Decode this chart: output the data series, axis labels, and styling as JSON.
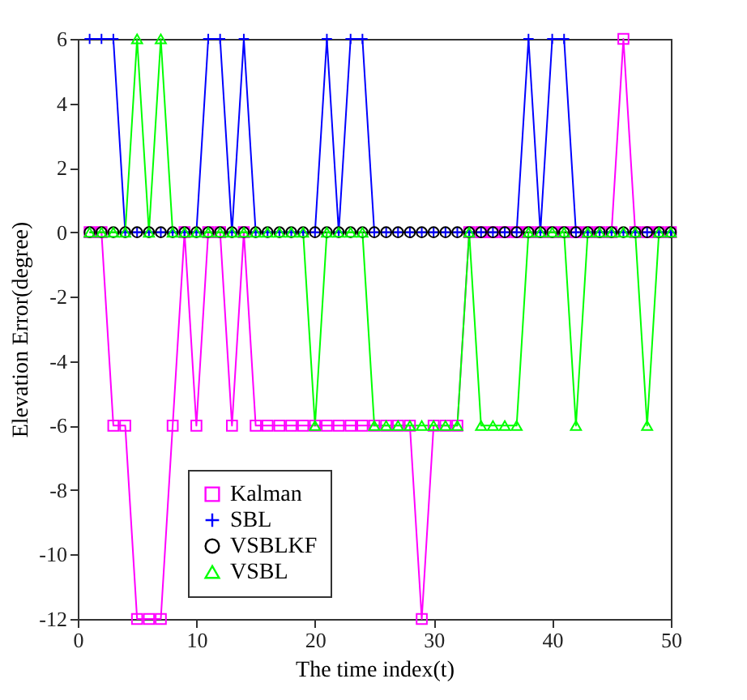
{
  "chart_data": {
    "type": "line",
    "xlabel": "The time index(t)",
    "ylabel": "Elevation Error(degree)",
    "x": [
      1,
      2,
      3,
      4,
      5,
      6,
      7,
      8,
      9,
      10,
      11,
      12,
      13,
      14,
      15,
      16,
      17,
      18,
      19,
      20,
      21,
      22,
      23,
      24,
      25,
      26,
      27,
      28,
      29,
      30,
      31,
      32,
      33,
      34,
      35,
      36,
      37,
      38,
      39,
      40,
      41,
      42,
      43,
      44,
      45,
      46,
      47,
      48,
      49,
      50
    ],
    "xlim": [
      0,
      50
    ],
    "xticks": [
      0,
      10,
      20,
      30,
      40,
      50
    ],
    "ylim": [
      -12,
      6
    ],
    "yticks": [
      -12,
      -10,
      -8,
      -6,
      -4,
      -2,
      0,
      2,
      4,
      6
    ],
    "grid": false,
    "legend": "bottom left",
    "line_style": "solid",
    "series": [
      {
        "name": "Kalman",
        "color": "#ff00ff",
        "marker": "square",
        "values": [
          0,
          0,
          -6,
          -6,
          -12,
          -12,
          -12,
          -6,
          0,
          -6,
          0,
          0,
          -6,
          0,
          -6,
          -6,
          -6,
          -6,
          -6,
          -6,
          -6,
          -6,
          -6,
          -6,
          -6,
          -6,
          -6,
          -6,
          -12,
          -6,
          -6,
          -6,
          0,
          0,
          0,
          0,
          0,
          0,
          0,
          0,
          0,
          0,
          0,
          0,
          0,
          6,
          0,
          0,
          0,
          0
        ]
      },
      {
        "name": "SBL",
        "color": "#0000ff",
        "marker": "cross",
        "values": [
          6,
          6,
          6,
          0,
          0,
          0,
          0,
          0,
          0,
          0,
          6,
          6,
          0,
          6,
          0,
          0,
          0,
          0,
          0,
          0,
          6,
          0,
          6,
          6,
          0,
          0,
          0,
          0,
          0,
          0,
          0,
          0,
          0,
          0,
          0,
          0,
          0,
          6,
          0,
          6,
          6,
          0,
          0,
          0,
          0,
          0,
          0,
          0,
          0,
          0
        ]
      },
      {
        "name": "VSBLKF",
        "color": "#000000",
        "marker": "circle",
        "values": [
          0,
          0,
          0,
          0,
          0,
          0,
          0,
          0,
          0,
          0,
          0,
          0,
          0,
          0,
          0,
          0,
          0,
          0,
          0,
          0,
          0,
          0,
          0,
          0,
          0,
          0,
          0,
          0,
          0,
          0,
          0,
          0,
          0,
          0,
          0,
          0,
          0,
          0,
          0,
          0,
          0,
          0,
          0,
          0,
          0,
          0,
          0,
          0,
          0,
          0
        ]
      },
      {
        "name": "VSBL",
        "color": "#00ff00",
        "marker": "triangle",
        "values": [
          0,
          0,
          0,
          0,
          6,
          0,
          6,
          0,
          0,
          0,
          0,
          0,
          0,
          0,
          0,
          0,
          0,
          0,
          0,
          -6,
          0,
          0,
          0,
          0,
          -6,
          -6,
          -6,
          -6,
          -6,
          -6,
          -6,
          -6,
          0,
          -6,
          -6,
          -6,
          -6,
          0,
          0,
          0,
          0,
          -6,
          0,
          0,
          0,
          0,
          0,
          -6,
          0,
          0
        ]
      }
    ]
  }
}
